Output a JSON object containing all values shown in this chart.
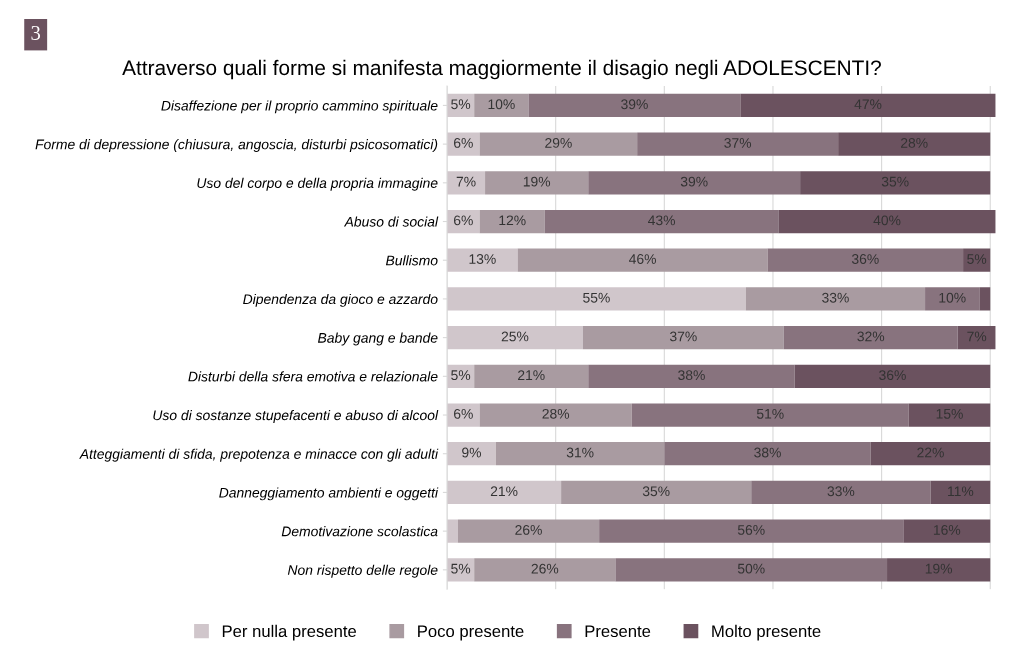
{
  "chart_data": {
    "type": "bar",
    "orientation": "horizontal",
    "stacked": true,
    "title": "Attraverso quali forme si manifesta maggiormente il disagio negli ADOLESCENTI?",
    "annotations": [
      "3"
    ],
    "categories": [
      "Disaffezione per il proprio cammino spirituale",
      "Forme di depressione (chiusura, angoscia, disturbi psicosomatici)",
      "Uso del corpo e della propria immagine",
      "Abuso di social",
      "Bullismo",
      "Dipendenza da gioco e azzardo",
      "Baby gang e bande",
      "Disturbi della sfera emotiva e relazionale",
      "Uso di sostanze stupefacenti e abuso di alcool",
      "Atteggiamenti di sfida, prepotenza e minacce con gli adulti",
      "Danneggiamento ambienti e oggetti",
      "Demotivazione scolastica",
      "Non rispetto delle regole"
    ],
    "series": [
      {
        "name": "Per nulla presente",
        "color": "#d0c6cb",
        "values": [
          5,
          6,
          7,
          6,
          13,
          55,
          25,
          5,
          6,
          9,
          21,
          2,
          5
        ],
        "value_labels": [
          "5%",
          "6%",
          "7%",
          "6%",
          "13%",
          "55%",
          "25%",
          "5%",
          "6%",
          "9%",
          "21%",
          null,
          "5%"
        ]
      },
      {
        "name": "Poco presente",
        "color": "#a99ba1",
        "values": [
          10,
          29,
          19,
          12,
          46,
          33,
          37,
          21,
          28,
          31,
          35,
          26,
          26
        ],
        "value_labels": [
          "10%",
          "29%",
          "19%",
          "12%",
          "46%",
          "33%",
          "37%",
          "21%",
          "28%",
          "31%",
          "35%",
          "26%",
          "26%"
        ]
      },
      {
        "name": "Presente",
        "color": "#88737e",
        "values": [
          39,
          37,
          39,
          43,
          36,
          10,
          32,
          38,
          51,
          38,
          33,
          56,
          50
        ],
        "value_labels": [
          "39%",
          "37%",
          "39%",
          "43%",
          "36%",
          "10%",
          "32%",
          "38%",
          "51%",
          "38%",
          "33%",
          "56%",
          "50%"
        ]
      },
      {
        "name": "Molto presente",
        "color": "#6b525f",
        "values": [
          47,
          28,
          35,
          40,
          5,
          2,
          7,
          36,
          15,
          22,
          11,
          16,
          19
        ],
        "value_labels": [
          "47%",
          "28%",
          "35%",
          "40%",
          "5%",
          null,
          "7%",
          "36%",
          "15%",
          "22%",
          "11%",
          "16%",
          "19%"
        ]
      }
    ],
    "xticks": [
      {
        "value": 0,
        "label": null
      },
      {
        "value": 20,
        "label": null
      },
      {
        "value": 40,
        "label": null
      },
      {
        "value": 60,
        "label": null
      },
      {
        "value": 80,
        "label": null
      },
      {
        "value": 100,
        "label": null
      }
    ],
    "tick_labels": "y",
    "grid": "x",
    "legend": "bottom"
  }
}
